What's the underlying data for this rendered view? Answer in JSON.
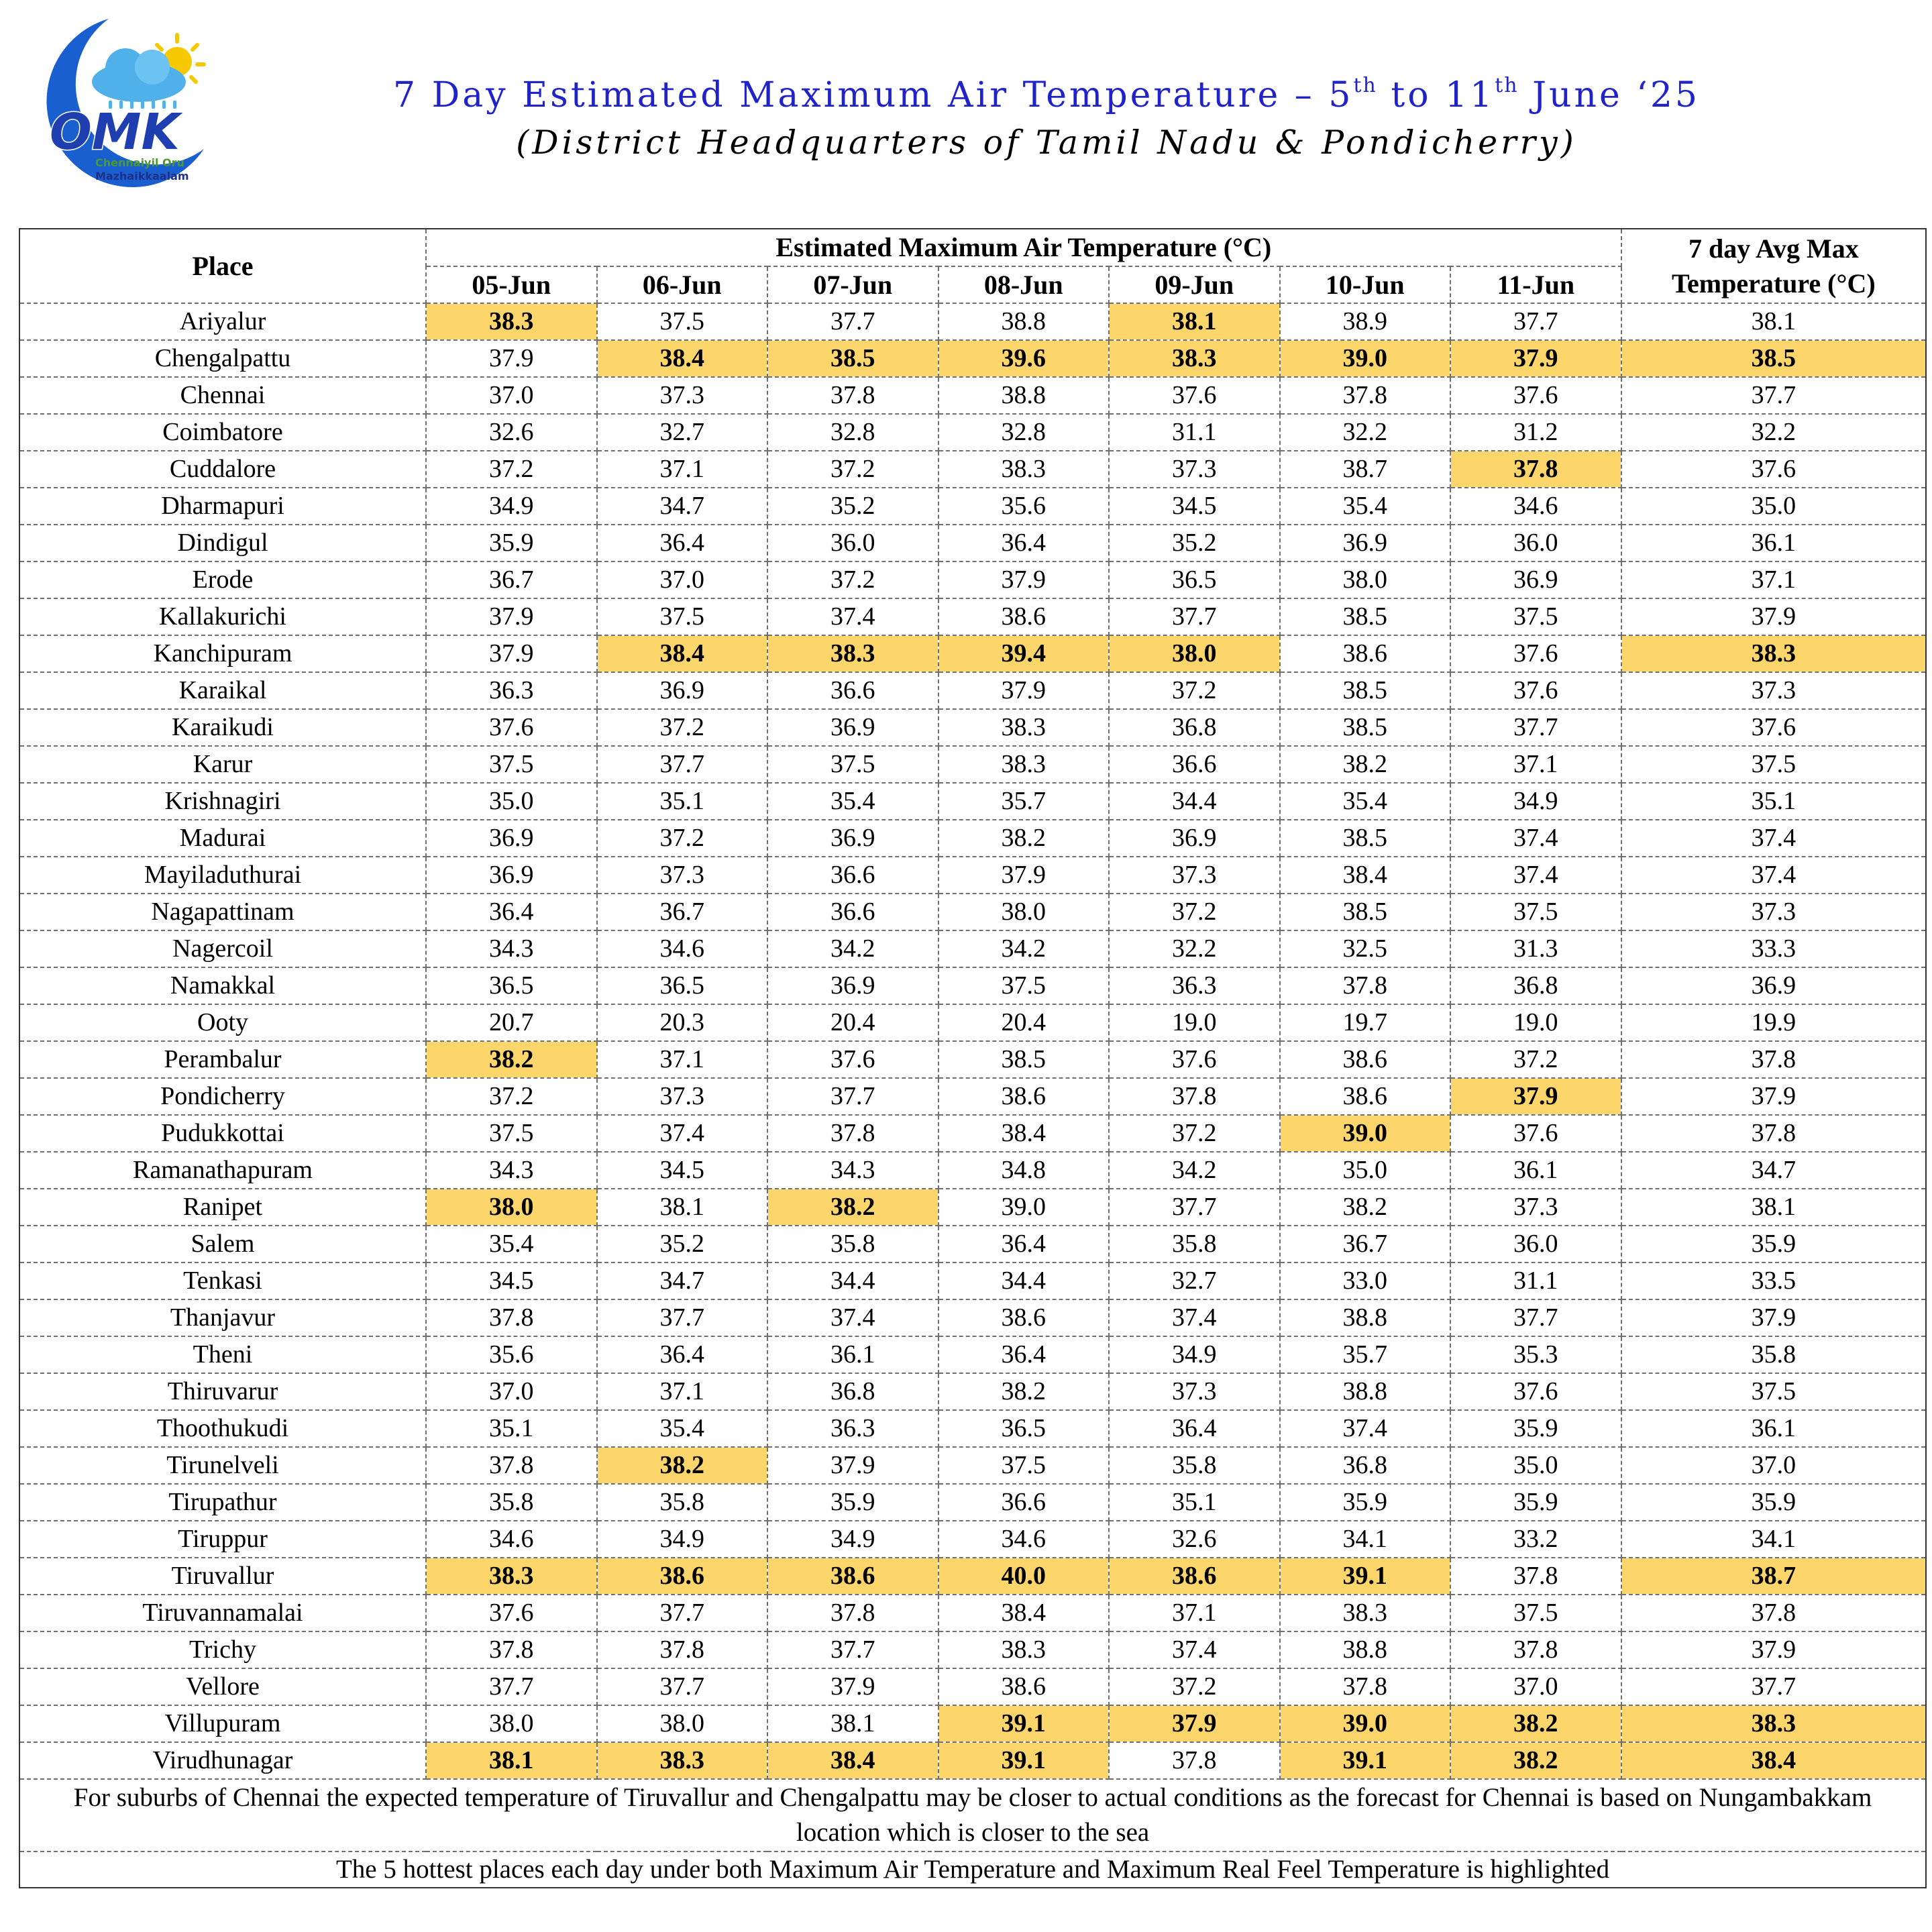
{
  "header": {
    "title_main": "7 Day Estimated Maximum Air Temperature – 5",
    "title_sup1": "th",
    "title_mid": " to 11",
    "title_sup2": "th",
    "title_end": " June ‘25",
    "subtitle": "(District Headquarters of Tamil Nadu & Pondicherry)"
  },
  "logo": {
    "letters": "OMK",
    "line1": "Chennaiyil Oru",
    "line2": "Mazhaikkaalam",
    "colors": {
      "moon": "#1a5fd0",
      "sun": "#f5c800",
      "cloud": "#4fb0ea",
      "text_dark": "#1f2f8a",
      "text_light": "#3bb1e6",
      "green": "#4d9a2b",
      "orange": "#f08a00"
    }
  },
  "table": {
    "place_header": "Place",
    "estimate_header": "Estimated Maximum Air Temperature (°C)",
    "avg_header_line1": "7 day Avg Max",
    "avg_header_line2": "Temperature (°C)",
    "days": [
      "05-Jun",
      "06-Jun",
      "07-Jun",
      "08-Jun",
      "09-Jun",
      "10-Jun",
      "11-Jun"
    ],
    "highlight_color": "#fdd66b",
    "rows": [
      {
        "place": "Ariyalur",
        "values": [
          "38.3",
          "37.5",
          "37.7",
          "38.8",
          "38.1",
          "38.9",
          "37.7"
        ],
        "avg": "38.1",
        "hl": [
          0,
          4
        ]
      },
      {
        "place": "Chengalpattu",
        "values": [
          "37.9",
          "38.4",
          "38.5",
          "39.6",
          "38.3",
          "39.0",
          "37.9"
        ],
        "avg": "38.5",
        "hl": [
          1,
          2,
          3,
          4,
          5,
          6,
          7
        ]
      },
      {
        "place": "Chennai",
        "values": [
          "37.0",
          "37.3",
          "37.8",
          "38.8",
          "37.6",
          "37.8",
          "37.6"
        ],
        "avg": "37.7",
        "hl": []
      },
      {
        "place": "Coimbatore",
        "values": [
          "32.6",
          "32.7",
          "32.8",
          "32.8",
          "31.1",
          "32.2",
          "31.2"
        ],
        "avg": "32.2",
        "hl": []
      },
      {
        "place": "Cuddalore",
        "values": [
          "37.2",
          "37.1",
          "37.2",
          "38.3",
          "37.3",
          "38.7",
          "37.8"
        ],
        "avg": "37.6",
        "hl": [
          6
        ]
      },
      {
        "place": "Dharmapuri",
        "values": [
          "34.9",
          "34.7",
          "35.2",
          "35.6",
          "34.5",
          "35.4",
          "34.6"
        ],
        "avg": "35.0",
        "hl": []
      },
      {
        "place": "Dindigul",
        "values": [
          "35.9",
          "36.4",
          "36.0",
          "36.4",
          "35.2",
          "36.9",
          "36.0"
        ],
        "avg": "36.1",
        "hl": []
      },
      {
        "place": "Erode",
        "values": [
          "36.7",
          "37.0",
          "37.2",
          "37.9",
          "36.5",
          "38.0",
          "36.9"
        ],
        "avg": "37.1",
        "hl": []
      },
      {
        "place": "Kallakurichi",
        "values": [
          "37.9",
          "37.5",
          "37.4",
          "38.6",
          "37.7",
          "38.5",
          "37.5"
        ],
        "avg": "37.9",
        "hl": []
      },
      {
        "place": "Kanchipuram",
        "values": [
          "37.9",
          "38.4",
          "38.3",
          "39.4",
          "38.0",
          "38.6",
          "37.6"
        ],
        "avg": "38.3",
        "hl": [
          1,
          2,
          3,
          4,
          7
        ]
      },
      {
        "place": "Karaikal",
        "values": [
          "36.3",
          "36.9",
          "36.6",
          "37.9",
          "37.2",
          "38.5",
          "37.6"
        ],
        "avg": "37.3",
        "hl": []
      },
      {
        "place": "Karaikudi",
        "values": [
          "37.6",
          "37.2",
          "36.9",
          "38.3",
          "36.8",
          "38.5",
          "37.7"
        ],
        "avg": "37.6",
        "hl": []
      },
      {
        "place": "Karur",
        "values": [
          "37.5",
          "37.7",
          "37.5",
          "38.3",
          "36.6",
          "38.2",
          "37.1"
        ],
        "avg": "37.5",
        "hl": []
      },
      {
        "place": "Krishnagiri",
        "values": [
          "35.0",
          "35.1",
          "35.4",
          "35.7",
          "34.4",
          "35.4",
          "34.9"
        ],
        "avg": "35.1",
        "hl": []
      },
      {
        "place": "Madurai",
        "values": [
          "36.9",
          "37.2",
          "36.9",
          "38.2",
          "36.9",
          "38.5",
          "37.4"
        ],
        "avg": "37.4",
        "hl": []
      },
      {
        "place": "Mayiladuthurai",
        "values": [
          "36.9",
          "37.3",
          "36.6",
          "37.9",
          "37.3",
          "38.4",
          "37.4"
        ],
        "avg": "37.4",
        "hl": []
      },
      {
        "place": "Nagapattinam",
        "values": [
          "36.4",
          "36.7",
          "36.6",
          "38.0",
          "37.2",
          "38.5",
          "37.5"
        ],
        "avg": "37.3",
        "hl": []
      },
      {
        "place": "Nagercoil",
        "values": [
          "34.3",
          "34.6",
          "34.2",
          "34.2",
          "32.2",
          "32.5",
          "31.3"
        ],
        "avg": "33.3",
        "hl": []
      },
      {
        "place": "Namakkal",
        "values": [
          "36.5",
          "36.5",
          "36.9",
          "37.5",
          "36.3",
          "37.8",
          "36.8"
        ],
        "avg": "36.9",
        "hl": []
      },
      {
        "place": "Ooty",
        "values": [
          "20.7",
          "20.3",
          "20.4",
          "20.4",
          "19.0",
          "19.7",
          "19.0"
        ],
        "avg": "19.9",
        "hl": []
      },
      {
        "place": "Perambalur",
        "values": [
          "38.2",
          "37.1",
          "37.6",
          "38.5",
          "37.6",
          "38.6",
          "37.2"
        ],
        "avg": "37.8",
        "hl": [
          0
        ]
      },
      {
        "place": "Pondicherry",
        "values": [
          "37.2",
          "37.3",
          "37.7",
          "38.6",
          "37.8",
          "38.6",
          "37.9"
        ],
        "avg": "37.9",
        "hl": [
          6
        ]
      },
      {
        "place": "Pudukkottai",
        "values": [
          "37.5",
          "37.4",
          "37.8",
          "38.4",
          "37.2",
          "39.0",
          "37.6"
        ],
        "avg": "37.8",
        "hl": [
          5
        ]
      },
      {
        "place": "Ramanathapuram",
        "values": [
          "34.3",
          "34.5",
          "34.3",
          "34.8",
          "34.2",
          "35.0",
          "36.1"
        ],
        "avg": "34.7",
        "hl": []
      },
      {
        "place": "Ranipet",
        "values": [
          "38.0",
          "38.1",
          "38.2",
          "39.0",
          "37.7",
          "38.2",
          "37.3"
        ],
        "avg": "38.1",
        "hl": [
          0,
          2
        ]
      },
      {
        "place": "Salem",
        "values": [
          "35.4",
          "35.2",
          "35.8",
          "36.4",
          "35.8",
          "36.7",
          "36.0"
        ],
        "avg": "35.9",
        "hl": []
      },
      {
        "place": "Tenkasi",
        "values": [
          "34.5",
          "34.7",
          "34.4",
          "34.4",
          "32.7",
          "33.0",
          "31.1"
        ],
        "avg": "33.5",
        "hl": []
      },
      {
        "place": "Thanjavur",
        "values": [
          "37.8",
          "37.7",
          "37.4",
          "38.6",
          "37.4",
          "38.8",
          "37.7"
        ],
        "avg": "37.9",
        "hl": []
      },
      {
        "place": "Theni",
        "values": [
          "35.6",
          "36.4",
          "36.1",
          "36.4",
          "34.9",
          "35.7",
          "35.3"
        ],
        "avg": "35.8",
        "hl": []
      },
      {
        "place": "Thiruvarur",
        "values": [
          "37.0",
          "37.1",
          "36.8",
          "38.2",
          "37.3",
          "38.8",
          "37.6"
        ],
        "avg": "37.5",
        "hl": []
      },
      {
        "place": "Thoothukudi",
        "values": [
          "35.1",
          "35.4",
          "36.3",
          "36.5",
          "36.4",
          "37.4",
          "35.9"
        ],
        "avg": "36.1",
        "hl": []
      },
      {
        "place": "Tirunelveli",
        "values": [
          "37.8",
          "38.2",
          "37.9",
          "37.5",
          "35.8",
          "36.8",
          "35.0"
        ],
        "avg": "37.0",
        "hl": [
          1
        ]
      },
      {
        "place": "Tirupathur",
        "values": [
          "35.8",
          "35.8",
          "35.9",
          "36.6",
          "35.1",
          "35.9",
          "35.9"
        ],
        "avg": "35.9",
        "hl": []
      },
      {
        "place": "Tiruppur",
        "values": [
          "34.6",
          "34.9",
          "34.9",
          "34.6",
          "32.6",
          "34.1",
          "33.2"
        ],
        "avg": "34.1",
        "hl": []
      },
      {
        "place": "Tiruvallur",
        "values": [
          "38.3",
          "38.6",
          "38.6",
          "40.0",
          "38.6",
          "39.1",
          "37.8"
        ],
        "avg": "38.7",
        "hl": [
          0,
          1,
          2,
          3,
          4,
          5,
          7
        ]
      },
      {
        "place": "Tiruvannamalai",
        "values": [
          "37.6",
          "37.7",
          "37.8",
          "38.4",
          "37.1",
          "38.3",
          "37.5"
        ],
        "avg": "37.8",
        "hl": []
      },
      {
        "place": "Trichy",
        "values": [
          "37.8",
          "37.8",
          "37.7",
          "38.3",
          "37.4",
          "38.8",
          "37.8"
        ],
        "avg": "37.9",
        "hl": []
      },
      {
        "place": "Vellore",
        "values": [
          "37.7",
          "37.7",
          "37.9",
          "38.6",
          "37.2",
          "37.8",
          "37.0"
        ],
        "avg": "37.7",
        "hl": []
      },
      {
        "place": "Villupuram",
        "values": [
          "38.0",
          "38.0",
          "38.1",
          "39.1",
          "37.9",
          "39.0",
          "38.2"
        ],
        "avg": "38.3",
        "hl": [
          3,
          4,
          5,
          6,
          7
        ]
      },
      {
        "place": "Virudhunagar",
        "values": [
          "38.1",
          "38.3",
          "38.4",
          "39.1",
          "37.8",
          "39.1",
          "38.2"
        ],
        "avg": "38.4",
        "hl": [
          0,
          1,
          2,
          3,
          5,
          6,
          7
        ]
      }
    ],
    "footnote1": "For suburbs of Chennai the expected temperature of Tiruvallur and Chengalpattu may be closer to actual conditions as the forecast for Chennai is based on Nungambakkam location which is closer to the sea",
    "footnote2": "The 5 hottest places each day under both Maximum Air Temperature and Maximum Real Feel Temperature is highlighted"
  }
}
